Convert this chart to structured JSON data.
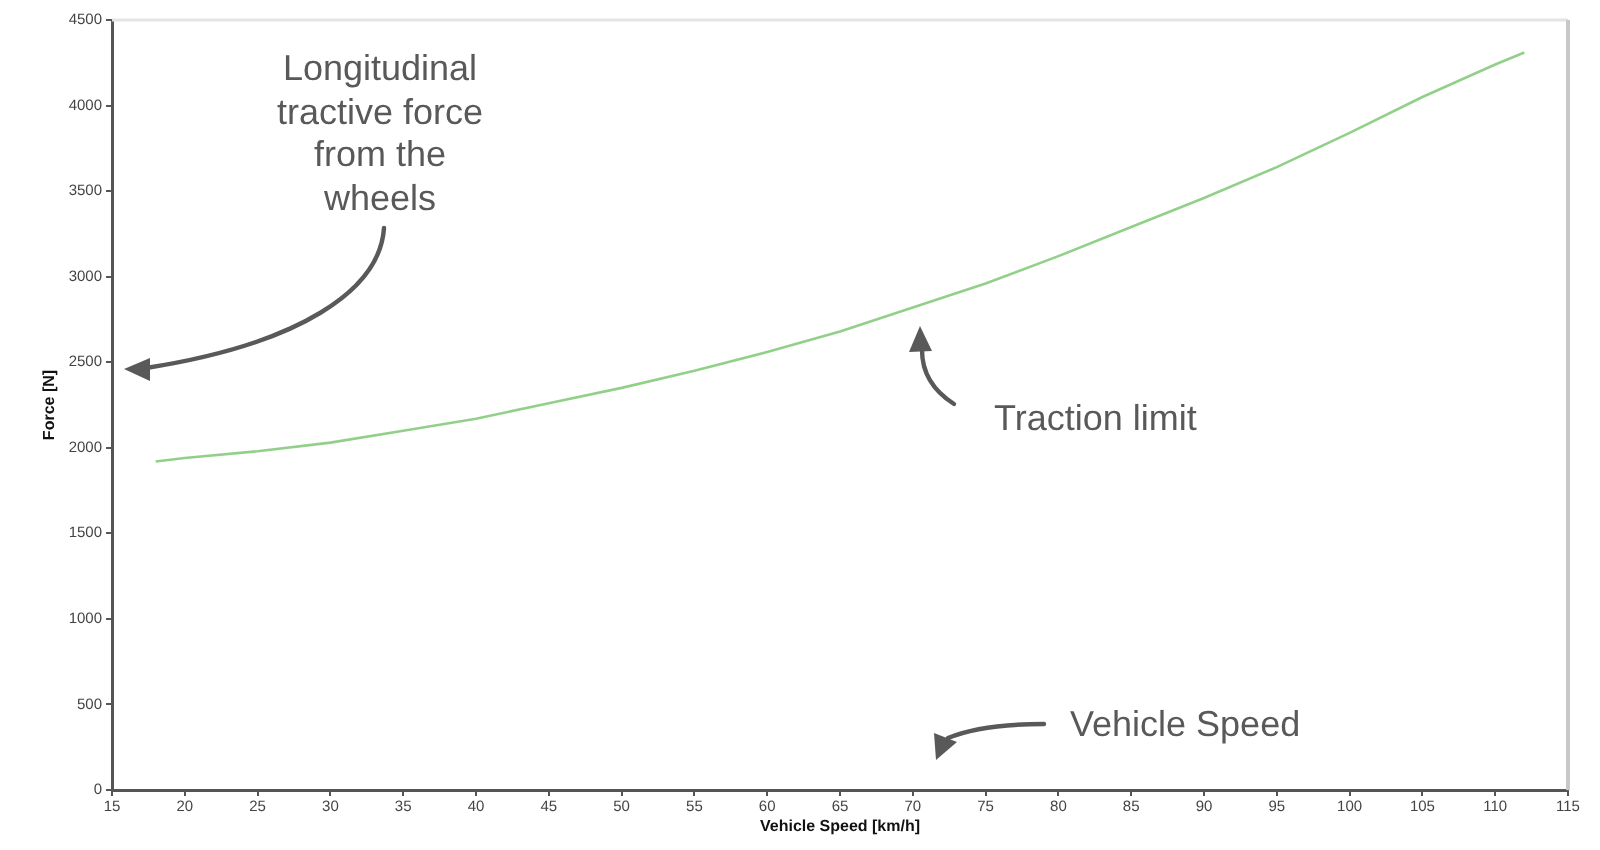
{
  "chart_data": {
    "type": "line",
    "xlabel": "Vehicle Speed [km/h]",
    "ylabel": "Force [N]",
    "x": [
      18,
      20,
      25,
      30,
      35,
      40,
      45,
      50,
      55,
      60,
      65,
      70,
      75,
      80,
      85,
      90,
      95,
      100,
      105,
      110,
      112
    ],
    "series": [
      {
        "color": "#92d08a",
        "values": [
          1920,
          1940,
          1980,
          2030,
          2100,
          2170,
          2260,
          2350,
          2450,
          2560,
          2680,
          2820,
          2960,
          3120,
          3290,
          3460,
          3640,
          3840,
          4050,
          4240,
          4310
        ]
      }
    ],
    "xlim": [
      15,
      115
    ],
    "xticks": [
      15,
      20,
      25,
      30,
      35,
      40,
      45,
      50,
      55,
      60,
      65,
      70,
      75,
      80,
      85,
      90,
      95,
      100,
      105,
      110,
      115
    ],
    "ylim": [
      0,
      4500
    ],
    "yticks": [
      0,
      500,
      1000,
      1500,
      2000,
      2500,
      3000,
      3500,
      4000,
      4500
    ],
    "annotations": [
      "Longitudinal tractive force from the wheels",
      "Traction limit",
      "Vehicle Speed"
    ]
  }
}
